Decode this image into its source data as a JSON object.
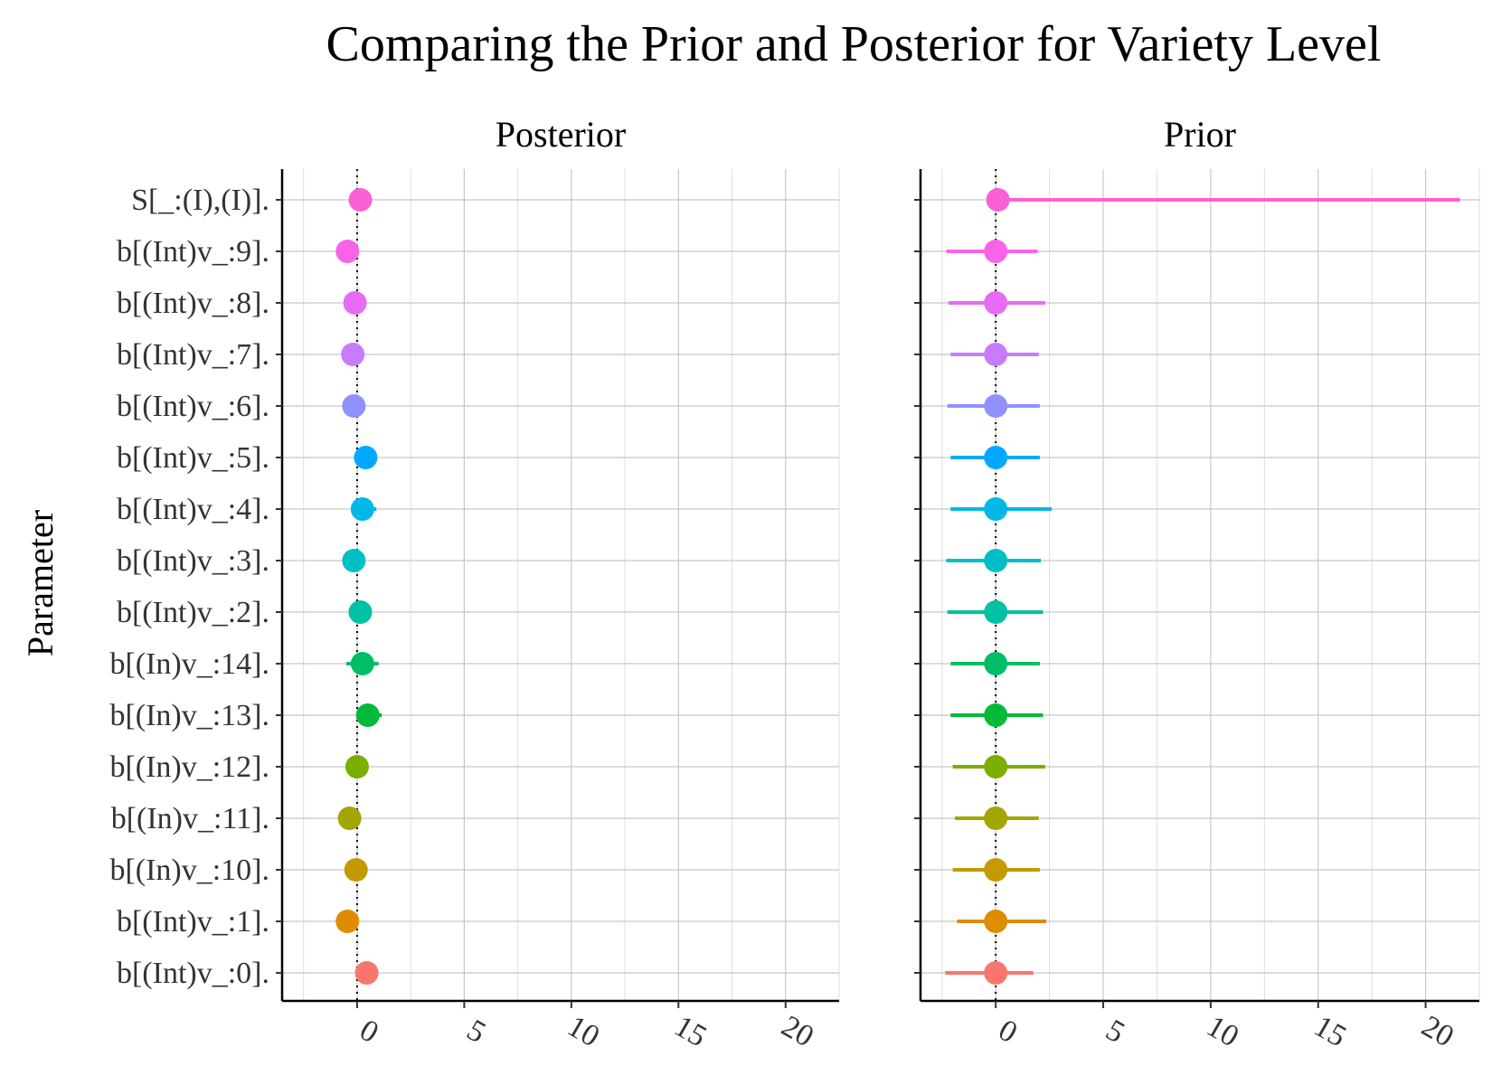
{
  "chart_data": {
    "type": "dot-interval",
    "title": "Comparing the Prior and Posterior for Variety Level",
    "ylabel": "Parameter",
    "xlabel": "",
    "xlim": [
      -3.5,
      22.5
    ],
    "x_ticks": [
      0,
      5,
      10,
      15,
      20
    ],
    "x_tick_labels": [
      "0",
      "5",
      "10",
      "15",
      "20"
    ],
    "reference_line_x": 0,
    "grid": true,
    "legend": "none",
    "categories": [
      "S[_:(I),(I)].",
      "b[(Int)v_:9].",
      "b[(Int)v_:8].",
      "b[(Int)v_:7].",
      "b[(Int)v_:6].",
      "b[(Int)v_:5].",
      "b[(Int)v_:4].",
      "b[(Int)v_:3].",
      "b[(Int)v_:2].",
      "b[(In)v_:14].",
      "b[(In)v_:13].",
      "b[(In)v_:12].",
      "b[(In)v_:11].",
      "b[(In)v_:10].",
      "b[(Int)v_:1].",
      "b[(Int)v_:0]."
    ],
    "colors": [
      "#FB61D7",
      "#F863E8",
      "#E76BF3",
      "#C77CFF",
      "#8F91FF",
      "#00A9FF",
      "#00B7E8",
      "#00BFC4",
      "#00C1A3",
      "#00BE67",
      "#00BA38",
      "#7CAE00",
      "#A3A500",
      "#C49A00",
      "#DE8C00",
      "#F8766D"
    ],
    "panels": [
      {
        "name": "Posterior",
        "estimate": [
          0.15,
          -0.45,
          -0.1,
          -0.2,
          -0.15,
          0.4,
          0.25,
          -0.15,
          0.15,
          0.25,
          0.5,
          0.0,
          -0.35,
          -0.05,
          -0.45,
          0.45
        ],
        "lower": [
          0.15,
          -0.45,
          -0.1,
          -0.2,
          -0.15,
          0.4,
          0.25,
          -0.15,
          0.15,
          -0.5,
          0.5,
          0.0,
          -0.35,
          -0.05,
          -0.45,
          0.45
        ],
        "upper": [
          0.15,
          -0.45,
          -0.1,
          -0.2,
          -0.15,
          0.4,
          0.9,
          -0.15,
          0.15,
          1.0,
          1.15,
          0.0,
          -0.35,
          -0.05,
          -0.45,
          0.45
        ]
      },
      {
        "name": "Prior",
        "estimate": [
          0.1,
          0.0,
          0.0,
          0.0,
          0.0,
          0.0,
          0.0,
          0.0,
          0.0,
          0.0,
          0.0,
          0.0,
          0.0,
          0.0,
          0.0,
          0.0
        ],
        "lower": [
          0.1,
          -2.3,
          -2.2,
          -2.1,
          -2.25,
          -2.1,
          -2.1,
          -2.3,
          -2.25,
          -2.1,
          -2.1,
          -2.0,
          -1.9,
          -2.0,
          -1.8,
          -2.35
        ],
        "upper": [
          21.6,
          1.95,
          2.3,
          2.0,
          2.05,
          2.05,
          2.6,
          2.1,
          2.2,
          2.05,
          2.2,
          2.3,
          2.0,
          2.05,
          2.35,
          1.75
        ]
      }
    ]
  }
}
